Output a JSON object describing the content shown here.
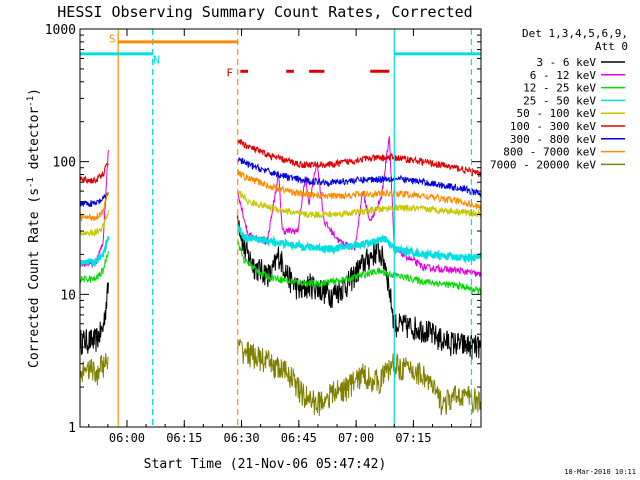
{
  "chart_data": {
    "type": "line",
    "title": "HESSI Observing Summary Count Rates, Corrected",
    "xlabel": "Start Time (21-Nov-06 05:47:42)",
    "ylabel": "Corrected Count Rate (s⁻¹ detector⁻¹)",
    "ylabel_main": "Corrected Count Rate (s",
    "ylabel_sup1": "-1",
    "ylabel_mid": " detector",
    "ylabel_sup2": "-1",
    "ylabel_end": ")",
    "yscale": "log",
    "ylim": [
      1,
      1000
    ],
    "xlim_minutes": [
      0,
      105
    ],
    "x_ticks": [
      {
        "label": "06:00",
        "minute": 12.3
      },
      {
        "label": "06:15",
        "minute": 27.3
      },
      {
        "label": "06:30",
        "minute": 42.3
      },
      {
        "label": "06:45",
        "minute": 57.3
      },
      {
        "label": "07:00",
        "minute": 72.3
      },
      {
        "label": "07:15",
        "minute": 87.3
      }
    ],
    "y_ticks": [
      {
        "label": "1",
        "value": 1
      },
      {
        "label": "10",
        "value": 10
      },
      {
        "label": "100",
        "value": 100
      },
      {
        "label": "1000",
        "value": 1000
      }
    ],
    "legend_header": [
      "Det 1,3,4,5,6,9,",
      "Att 0"
    ],
    "legend_position": "right",
    "footer_stamp": "18-Mar-2010 10:11",
    "gaps": [
      [
        7.7,
        41.3
      ],
      [
        82.3,
        105
      ]
    ],
    "series": [
      {
        "name": "3 - 6 keV",
        "color": "#000000",
        "pre": [
          [
            0,
            4.5
          ],
          [
            4,
            4.5
          ],
          [
            6,
            5.5
          ],
          [
            7.5,
            12
          ]
        ],
        "post": [
          [
            41.3,
            40
          ],
          [
            43,
            22
          ],
          [
            46,
            16
          ],
          [
            50,
            14
          ],
          [
            52,
            20
          ],
          [
            55,
            13
          ],
          [
            58,
            10.5
          ],
          [
            60,
            12
          ],
          [
            63,
            11
          ],
          [
            66,
            10
          ],
          [
            70,
            12
          ],
          [
            74,
            17
          ],
          [
            78,
            22
          ],
          [
            80,
            17
          ],
          [
            82,
            7
          ],
          [
            82.3,
            6
          ],
          [
            90,
            5.5
          ],
          [
            95,
            4.5
          ],
          [
            100,
            4.2
          ],
          [
            105,
            4
          ]
        ]
      },
      {
        "name": "6 - 12 keV",
        "color": "#e000e0",
        "pre": [
          [
            0,
            17
          ],
          [
            4,
            17
          ],
          [
            6,
            24
          ],
          [
            7.5,
            135
          ]
        ],
        "post": [
          [
            41.3,
            60
          ],
          [
            44,
            28
          ],
          [
            49,
            25
          ],
          [
            52,
            80
          ],
          [
            53,
            30
          ],
          [
            57,
            30
          ],
          [
            59,
            75
          ],
          [
            60,
            48
          ],
          [
            62,
            100
          ],
          [
            64,
            35
          ],
          [
            68,
            25
          ],
          [
            72,
            22
          ],
          [
            74,
            60
          ],
          [
            76,
            35
          ],
          [
            79,
            55
          ],
          [
            81,
            160
          ],
          [
            82.3,
            22
          ],
          [
            90,
            16
          ],
          [
            100,
            15
          ],
          [
            105,
            14
          ]
        ]
      },
      {
        "name": "12 - 25 keV",
        "color": "#00d800",
        "pre": [
          [
            0,
            13
          ],
          [
            4,
            13
          ],
          [
            6,
            15
          ],
          [
            7.5,
            22
          ]
        ],
        "post": [
          [
            41.3,
            25
          ],
          [
            43,
            18
          ],
          [
            48,
            14
          ],
          [
            55,
            12.5
          ],
          [
            62,
            12
          ],
          [
            70,
            13
          ],
          [
            78,
            15
          ],
          [
            82.3,
            14
          ],
          [
            90,
            12.5
          ],
          [
            100,
            11.5
          ],
          [
            105,
            10.5
          ]
        ]
      },
      {
        "name": "25 - 50 keV",
        "color": "#00e0e0",
        "pre": [
          [
            0,
            17
          ],
          [
            4,
            17.5
          ],
          [
            6,
            20
          ],
          [
            7.5,
            28
          ]
        ],
        "post": [
          [
            41.3,
            32
          ],
          [
            43,
            27
          ],
          [
            50,
            25
          ],
          [
            58,
            23
          ],
          [
            66,
            22
          ],
          [
            74,
            24
          ],
          [
            80,
            26
          ],
          [
            82.3,
            22
          ],
          [
            90,
            20
          ],
          [
            100,
            19
          ],
          [
            105,
            19
          ]
        ]
      },
      {
        "name": "50 - 100 keV",
        "color": "#c8c800",
        "pre": [
          [
            0,
            29
          ],
          [
            4,
            29
          ],
          [
            6,
            32
          ],
          [
            7.5,
            42
          ]
        ],
        "post": [
          [
            41.3,
            60
          ],
          [
            44,
            50
          ],
          [
            50,
            45
          ],
          [
            58,
            40
          ],
          [
            66,
            40
          ],
          [
            74,
            42
          ],
          [
            82,
            45
          ],
          [
            90,
            44
          ],
          [
            100,
            42
          ],
          [
            105,
            40
          ]
        ]
      },
      {
        "name": "100 - 300 keV",
        "color": "#e00000",
        "pre": [
          [
            0,
            73
          ],
          [
            4,
            72
          ],
          [
            6,
            80
          ],
          [
            7.5,
            100
          ]
        ],
        "post": [
          [
            41.3,
            145
          ],
          [
            44,
            130
          ],
          [
            50,
            110
          ],
          [
            58,
            95
          ],
          [
            66,
            95
          ],
          [
            74,
            105
          ],
          [
            82,
            108
          ],
          [
            90,
            100
          ],
          [
            100,
            88
          ],
          [
            105,
            80
          ]
        ]
      },
      {
        "name": "300 - 800 keV",
        "color": "#0000e0",
        "pre": [
          [
            0,
            49
          ],
          [
            4,
            48
          ],
          [
            6,
            52
          ],
          [
            7.5,
            58
          ]
        ],
        "post": [
          [
            41.3,
            105
          ],
          [
            44,
            95
          ],
          [
            50,
            83
          ],
          [
            58,
            72
          ],
          [
            66,
            70
          ],
          [
            74,
            73
          ],
          [
            82,
            75
          ],
          [
            90,
            70
          ],
          [
            100,
            63
          ],
          [
            105,
            57
          ]
        ]
      },
      {
        "name": "800 - 7000 keV",
        "color": "#ff8c00",
        "pre": [
          [
            0,
            38
          ],
          [
            4,
            38
          ],
          [
            6,
            42
          ],
          [
            7.5,
            60
          ]
        ],
        "post": [
          [
            41.3,
            82
          ],
          [
            44,
            75
          ],
          [
            50,
            65
          ],
          [
            58,
            57
          ],
          [
            66,
            55
          ],
          [
            74,
            57
          ],
          [
            82,
            58
          ],
          [
            90,
            55
          ],
          [
            100,
            50
          ],
          [
            105,
            45
          ]
        ]
      },
      {
        "name": "7000 - 20000 keV",
        "color": "#808000",
        "pre": [
          [
            0,
            2.5
          ],
          [
            2,
            3
          ],
          [
            4,
            2.5
          ],
          [
            6,
            3
          ],
          [
            7.5,
            3
          ]
        ],
        "post": [
          [
            41.3,
            4
          ],
          [
            50,
            3
          ],
          [
            55,
            2.5
          ],
          [
            58,
            1.8
          ],
          [
            62,
            1.5
          ],
          [
            66,
            1.8
          ],
          [
            70,
            2
          ],
          [
            74,
            2.5
          ],
          [
            78,
            2.2
          ],
          [
            82,
            3
          ],
          [
            90,
            2.5
          ],
          [
            95,
            1.5
          ],
          [
            100,
            1.8
          ],
          [
            105,
            1.5
          ]
        ]
      }
    ],
    "state_flags": [
      {
        "label": "S",
        "color": "#ff8c00",
        "minute": 10,
        "y": 650,
        "dashed": false,
        "bar_to": 41.3
      },
      {
        "label": "N",
        "color": "#00e0e0",
        "minute": 19,
        "y": 650,
        "dashed": true
      },
      {
        "label": "F",
        "color": "#e00000",
        "minute": 41.3,
        "y": 490,
        "dashed": true
      }
    ],
    "cyan_bars": [
      [
        0,
        19
      ],
      [
        82.3,
        105
      ]
    ],
    "flare_bars": [
      [
        42,
        44
      ],
      [
        54,
        56
      ],
      [
        60,
        64
      ],
      [
        76,
        81
      ]
    ],
    "vlines": [
      {
        "minute": 10,
        "color": "#ff8c00",
        "dashed": false
      },
      {
        "minute": 19,
        "color": "#00e0e0",
        "dashed": true
      },
      {
        "minute": 41.3,
        "color": "#ff8c00",
        "dashed": true
      },
      {
        "minute": 82.3,
        "color": "#00e0e0",
        "dashed": false
      },
      {
        "minute": 102.5,
        "color": "#00e0e0",
        "dashed": true
      }
    ]
  }
}
